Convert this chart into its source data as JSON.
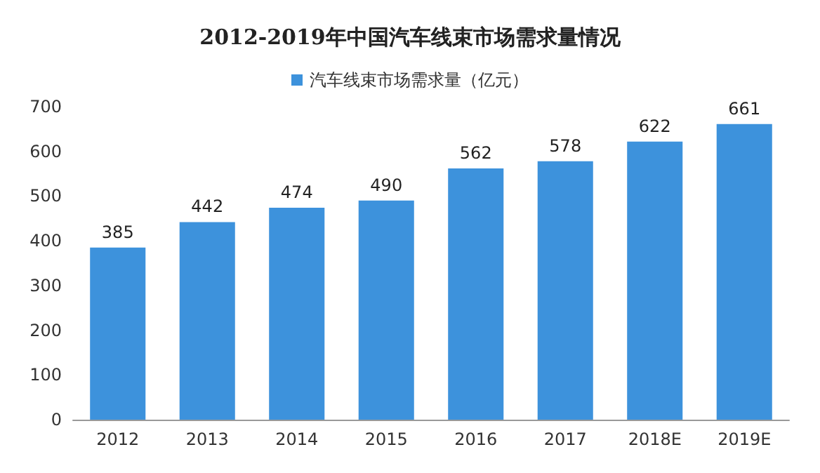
{
  "chart_data": {
    "type": "bar",
    "title": "2012-2019年中国汽车线束市场需求量情况",
    "categories": [
      "2012",
      "2013",
      "2014",
      "2015",
      "2016",
      "2017",
      "2018E",
      "2019E"
    ],
    "series": [
      {
        "name": "汽车线束市场需求量（亿元）",
        "color": "#3d92dc",
        "values": [
          385,
          442,
          474,
          490,
          562,
          578,
          622,
          661
        ]
      }
    ],
    "ylim": [
      0,
      700
    ],
    "yticks": [
      0,
      100,
      200,
      300,
      400,
      500,
      600,
      700
    ],
    "grid": false,
    "legend": "top",
    "data_labels": true
  }
}
